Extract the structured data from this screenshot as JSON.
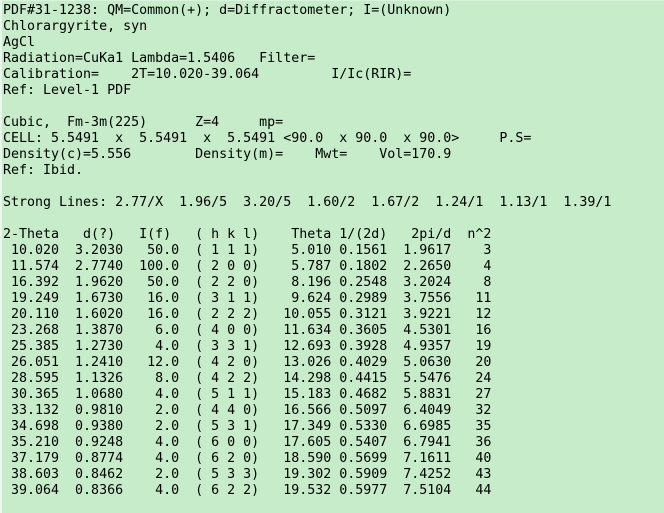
{
  "window": {
    "background": "#c6ecca",
    "text_color": "#000000"
  },
  "card": {
    "header": {
      "id_line": "PDF#31-1238: QM=Common(+); d=Diffractometer; I=(Unknown)",
      "name": "Chlorargyrite, syn",
      "formula": "AgCl",
      "radiation_line": "Radiation=CuKa1 Lambda=1.5406   Filter=",
      "calibration_line": "Calibration=    2T=10.020-39.064         I/Ic(RIR)=",
      "ref_line": "Ref: Level-1 PDF"
    },
    "structure": {
      "symmetry_line": "Cubic,  Fm-3m(225)      Z=4     mp=",
      "cell_line": "CELL: 5.5491  x  5.5491  x  5.5491 <90.0  x 90.0  x 90.0>     P.S=",
      "density_line": "Density(c)=5.556        Density(m)=    Mwt=    Vol=170.9",
      "ref_line": "Ref: Ibid."
    },
    "strong_lines_line": "Strong Lines: 2.77/X  1.96/5  3.20/5  1.60/2  1.67/2  1.24/1  1.13/1  1.39/1",
    "table": {
      "columns": [
        "2-Theta",
        "d(?)",
        "I(f)",
        "( h k l)",
        "Theta",
        "1/(2d)",
        "2pi/d",
        "n^2"
      ],
      "rows": [
        [
          "10.020",
          "3.2030",
          "50.0",
          "1 1 1",
          "5.010",
          "0.1561",
          "1.9617",
          "3"
        ],
        [
          "11.574",
          "2.7740",
          "100.0",
          "2 0 0",
          "5.787",
          "0.1802",
          "2.2650",
          "4"
        ],
        [
          "16.392",
          "1.9620",
          "50.0",
          "2 2 0",
          "8.196",
          "0.2548",
          "3.2024",
          "8"
        ],
        [
          "19.249",
          "1.6730",
          "16.0",
          "3 1 1",
          "9.624",
          "0.2989",
          "3.7556",
          "11"
        ],
        [
          "20.110",
          "1.6020",
          "16.0",
          "2 2 2",
          "10.055",
          "0.3121",
          "3.9221",
          "12"
        ],
        [
          "23.268",
          "1.3870",
          "6.0",
          "4 0 0",
          "11.634",
          "0.3605",
          "4.5301",
          "16"
        ],
        [
          "25.385",
          "1.2730",
          "4.0",
          "3 3 1",
          "12.693",
          "0.3928",
          "4.9357",
          "19"
        ],
        [
          "26.051",
          "1.2410",
          "12.0",
          "4 2 0",
          "13.026",
          "0.4029",
          "5.0630",
          "20"
        ],
        [
          "28.595",
          "1.1326",
          "8.0",
          "4 2 2",
          "14.298",
          "0.4415",
          "5.5476",
          "24"
        ],
        [
          "30.365",
          "1.0680",
          "4.0",
          "5 1 1",
          "15.183",
          "0.4682",
          "5.8831",
          "27"
        ],
        [
          "33.132",
          "0.9810",
          "2.0",
          "4 4 0",
          "16.566",
          "0.5097",
          "6.4049",
          "32"
        ],
        [
          "34.698",
          "0.9380",
          "2.0",
          "5 3 1",
          "17.349",
          "0.5330",
          "6.6985",
          "35"
        ],
        [
          "35.210",
          "0.9248",
          "4.0",
          "6 0 0",
          "17.605",
          "0.5407",
          "6.7941",
          "36"
        ],
        [
          "37.179",
          "0.8774",
          "4.0",
          "6 2 0",
          "18.590",
          "0.5699",
          "7.1611",
          "40"
        ],
        [
          "38.603",
          "0.8462",
          "2.0",
          "5 3 3",
          "19.302",
          "0.5909",
          "7.4252",
          "43"
        ],
        [
          "39.064",
          "0.8366",
          "4.0",
          "6 2 2",
          "19.532",
          "0.5977",
          "7.5104",
          "44"
        ]
      ]
    }
  }
}
